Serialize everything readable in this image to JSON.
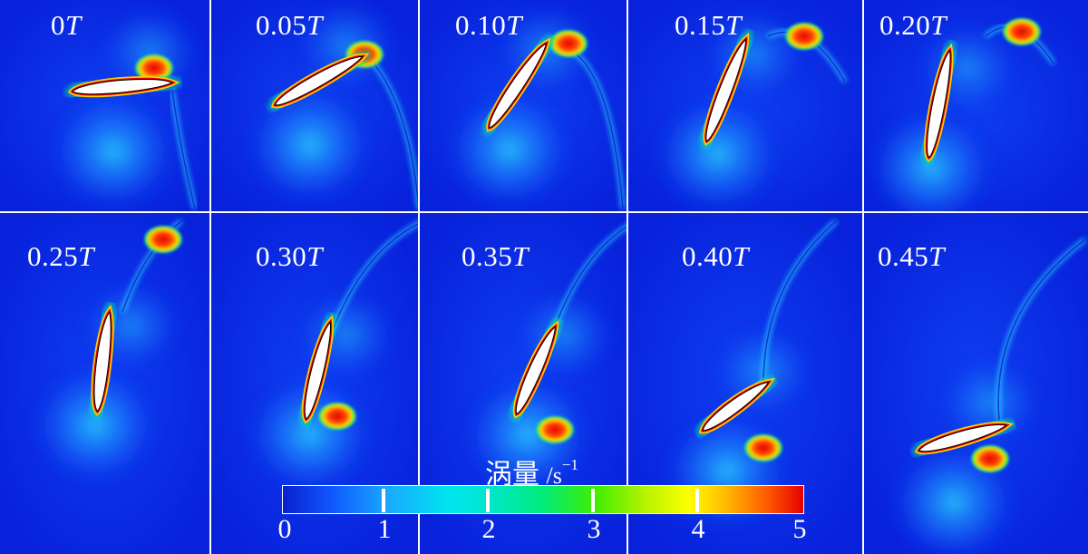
{
  "panels": [
    {
      "label": "0",
      "unit": "T"
    },
    {
      "label": "0.05",
      "unit": "T"
    },
    {
      "label": "0.10",
      "unit": "T"
    },
    {
      "label": "0.15",
      "unit": "T"
    },
    {
      "label": "0.20",
      "unit": "T"
    },
    {
      "label": "0.25",
      "unit": "T"
    },
    {
      "label": "0.30",
      "unit": "T"
    },
    {
      "label": "0.35",
      "unit": "T"
    },
    {
      "label": "0.40",
      "unit": "T"
    },
    {
      "label": "0.45",
      "unit": "T"
    }
  ],
  "legend": {
    "title": "涡量",
    "unit": "/s",
    "exponent": "−1",
    "ticks": [
      "0",
      "1",
      "2",
      "3",
      "4",
      "5"
    ]
  },
  "colors": {
    "background": "#0a28e6",
    "low": "#0a1fd0",
    "mid": "#00e6f0",
    "high": "#e60000",
    "foil": "#ffffff"
  }
}
